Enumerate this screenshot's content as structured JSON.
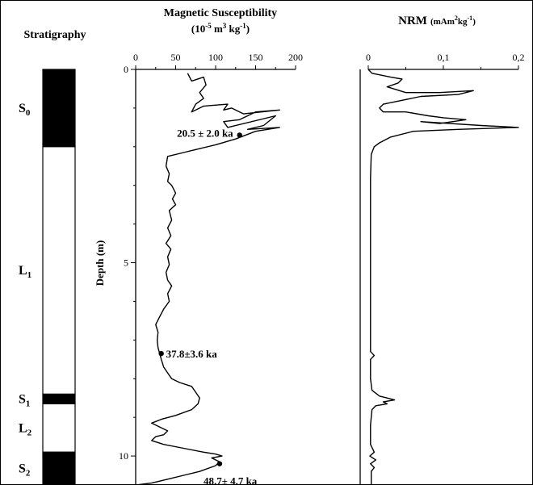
{
  "figure": {
    "stratigraphy_title": "Stratigraphy",
    "units": [
      {
        "label": "S",
        "sub": "0",
        "fill": "#000000",
        "top": 0,
        "bottom": 2.0
      },
      {
        "label": "L",
        "sub": "1",
        "fill": "#ffffff",
        "top": 2.0,
        "bottom": 8.4
      },
      {
        "label": "S",
        "sub": "1",
        "fill": "#000000",
        "top": 8.4,
        "bottom": 8.65
      },
      {
        "label": "L",
        "sub": "2",
        "fill": "#ffffff",
        "top": 8.65,
        "bottom": 9.9
      },
      {
        "label": "S",
        "sub": "2",
        "fill": "#000000",
        "top": 9.9,
        "bottom": 10.75
      }
    ]
  },
  "chart_data": [
    {
      "type": "line",
      "title_line1": "Magnetic Susceptibility",
      "title_unit": "(10",
      "title_unit_sup": "-5",
      "title_unit_mid": " m",
      "title_unit_sup2": "3",
      "title_unit_end": " kg",
      "title_unit_sup3": "-1",
      "title_unit_close": ")",
      "ylabel": "Depth (m)",
      "xlim": [
        0,
        200
      ],
      "ylim": [
        0,
        10.75
      ],
      "xticks": [
        "0",
        "50",
        "100",
        "150",
        "200"
      ],
      "xtick_values": [
        0,
        50,
        100,
        150,
        200
      ],
      "yticks": [
        "0",
        "5",
        "10"
      ],
      "ytick_values": [
        0,
        5,
        10
      ],
      "series": [
        {
          "points": [
            [
              65,
              0.1
            ],
            [
              70,
              0.3
            ],
            [
              85,
              0.2
            ],
            [
              88,
              0.4
            ],
            [
              80,
              0.6
            ],
            [
              85,
              0.75
            ],
            [
              75,
              0.9
            ],
            [
              70,
              1.1
            ],
            [
              85,
              0.95
            ],
            [
              115,
              0.9
            ],
            [
              110,
              1.05
            ],
            [
              120,
              1.0
            ],
            [
              135,
              1.15
            ],
            [
              180,
              1.05
            ],
            [
              150,
              1.1
            ],
            [
              130,
              1.3
            ],
            [
              110,
              1.35
            ],
            [
              115,
              1.5
            ],
            [
              175,
              1.2
            ],
            [
              160,
              1.45
            ],
            [
              140,
              1.55
            ],
            [
              180,
              1.5
            ],
            [
              150,
              1.6
            ],
            [
              125,
              1.8
            ],
            [
              100,
              1.95
            ],
            [
              80,
              2.05
            ],
            [
              70,
              2.1
            ],
            [
              60,
              2.15
            ],
            [
              40,
              2.25
            ],
            [
              38,
              2.5
            ],
            [
              42,
              2.7
            ],
            [
              40,
              2.9
            ],
            [
              45,
              3.0
            ],
            [
              50,
              3.2
            ],
            [
              46,
              3.35
            ],
            [
              50,
              3.5
            ],
            [
              42,
              3.65
            ],
            [
              45,
              3.9
            ],
            [
              40,
              4.1
            ],
            [
              44,
              4.3
            ],
            [
              38,
              4.5
            ],
            [
              44,
              4.65
            ],
            [
              40,
              4.85
            ],
            [
              42,
              5.05
            ],
            [
              38,
              5.25
            ],
            [
              40,
              5.45
            ],
            [
              45,
              5.6
            ],
            [
              40,
              5.8
            ],
            [
              42,
              6.0
            ],
            [
              35,
              6.2
            ],
            [
              30,
              6.4
            ],
            [
              25,
              6.6
            ],
            [
              28,
              6.8
            ],
            [
              27,
              7.0
            ],
            [
              28,
              7.2
            ],
            [
              30,
              7.35
            ],
            [
              32,
              7.5
            ],
            [
              35,
              7.7
            ],
            [
              40,
              7.85
            ],
            [
              45,
              8.0
            ],
            [
              55,
              8.1
            ],
            [
              70,
              8.2
            ],
            [
              75,
              8.35
            ],
            [
              80,
              8.5
            ],
            [
              78,
              8.65
            ],
            [
              70,
              8.8
            ],
            [
              50,
              8.95
            ],
            [
              32,
              9.05
            ],
            [
              20,
              9.15
            ],
            [
              30,
              9.25
            ],
            [
              40,
              9.35
            ],
            [
              35,
              9.45
            ],
            [
              25,
              9.5
            ],
            [
              20,
              9.6
            ],
            [
              35,
              9.7
            ],
            [
              60,
              9.8
            ],
            [
              85,
              9.9
            ],
            [
              100,
              9.95
            ],
            [
              108,
              10.0
            ],
            [
              95,
              10.05
            ],
            [
              105,
              10.15
            ],
            [
              100,
              10.25
            ],
            [
              80,
              10.4
            ],
            [
              60,
              10.5
            ],
            [
              40,
              10.6
            ],
            [
              20,
              10.7
            ],
            [
              0,
              10.75
            ]
          ]
        }
      ],
      "annotations": [
        {
          "text": "20.5 ± 2.0 ka",
          "x": 130,
          "y": 1.7
        },
        {
          "text": "37.8±3.6 ka",
          "x": 32,
          "y": 7.35
        },
        {
          "text": "48.7± 4.7 ka",
          "x": 105,
          "y": 10.2
        }
      ]
    },
    {
      "type": "line",
      "title_main": "NRM",
      "title_unit": "(mAm",
      "title_unit_sup": "2",
      "title_unit_mid": "kg",
      "title_unit_sup2": "-1",
      "title_unit_close": ")",
      "xlim": [
        0,
        0.2
      ],
      "ylim": [
        0,
        10.75
      ],
      "xticks": [
        "0",
        "0,1",
        "0,2"
      ],
      "xtick_values": [
        0,
        0.1,
        0.2
      ],
      "series": [
        {
          "points": [
            [
              0.0,
              0.0
            ],
            [
              0.005,
              0.1
            ],
            [
              0.03,
              0.2
            ],
            [
              0.045,
              0.25
            ],
            [
              0.04,
              0.35
            ],
            [
              0.025,
              0.45
            ],
            [
              0.05,
              0.6
            ],
            [
              0.095,
              0.6
            ],
            [
              0.14,
              0.55
            ],
            [
              0.12,
              0.65
            ],
            [
              0.07,
              0.7
            ],
            [
              0.045,
              0.8
            ],
            [
              0.02,
              0.9
            ],
            [
              0.015,
              1.0
            ],
            [
              0.02,
              1.1
            ],
            [
              0.05,
              1.1
            ],
            [
              0.08,
              1.2
            ],
            [
              0.1,
              1.25
            ],
            [
              0.13,
              1.3
            ],
            [
              0.095,
              1.4
            ],
            [
              0.07,
              1.35
            ],
            [
              0.15,
              1.45
            ],
            [
              0.2,
              1.5
            ],
            [
              0.12,
              1.55
            ],
            [
              0.06,
              1.6
            ],
            [
              0.03,
              1.75
            ],
            [
              0.015,
              1.9
            ],
            [
              0.008,
              2.0
            ],
            [
              0.004,
              2.2
            ],
            [
              0.003,
              2.8
            ],
            [
              0.003,
              4.0
            ],
            [
              0.003,
              5.5
            ],
            [
              0.003,
              7.0
            ],
            [
              0.003,
              7.3
            ],
            [
              0.008,
              7.4
            ],
            [
              0.003,
              7.5
            ],
            [
              0.003,
              8.0
            ],
            [
              0.005,
              8.3
            ],
            [
              0.015,
              8.45
            ],
            [
              0.025,
              8.5
            ],
            [
              0.035,
              8.55
            ],
            [
              0.02,
              8.6
            ],
            [
              0.025,
              8.65
            ],
            [
              0.01,
              8.7
            ],
            [
              0.005,
              8.8
            ],
            [
              0.003,
              9.2
            ],
            [
              0.003,
              9.7
            ],
            [
              0.008,
              9.9
            ],
            [
              0.002,
              10.0
            ],
            [
              0.01,
              10.1
            ],
            [
              0.003,
              10.2
            ],
            [
              0.008,
              10.3
            ],
            [
              0.004,
              10.4
            ],
            [
              0.004,
              10.75
            ]
          ]
        }
      ]
    }
  ]
}
